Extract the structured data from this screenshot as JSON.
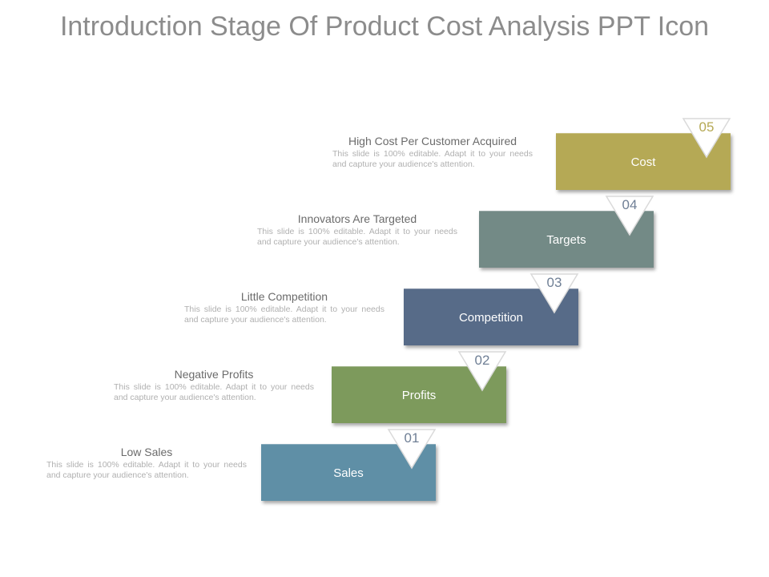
{
  "title": "Introduction Stage Of Product Cost Analysis PPT Icon",
  "steps": [
    {
      "number": "01",
      "label": "Sales",
      "heading": "Low Sales",
      "text": "This slide is 100% editable. Adapt it to your needs and capture your audience's attention.",
      "color": "#5f8fa6"
    },
    {
      "number": "02",
      "label": "Profits",
      "heading": "Negative Profits",
      "text": "This slide is 100% editable. Adapt it to your needs and capture your audience's attention.",
      "color": "#7d9a5c"
    },
    {
      "number": "03",
      "label": "Competition",
      "heading": "Little Competition",
      "text": "This slide is 100% editable. Adapt it to your needs and capture your audience's attention.",
      "color": "#576b88"
    },
    {
      "number": "04",
      "label": "Targets",
      "heading": "Innovators  Are Targeted",
      "text": "This slide is 100% editable. Adapt it to your needs and capture your audience's attention.",
      "color": "#738a86"
    },
    {
      "number": "05",
      "label": "Cost",
      "heading": "High Cost Per Customer Acquired",
      "text": "This slide is 100% editable. Adapt it to your needs and capture your audience's attention.",
      "color": "#b5a955"
    }
  ]
}
